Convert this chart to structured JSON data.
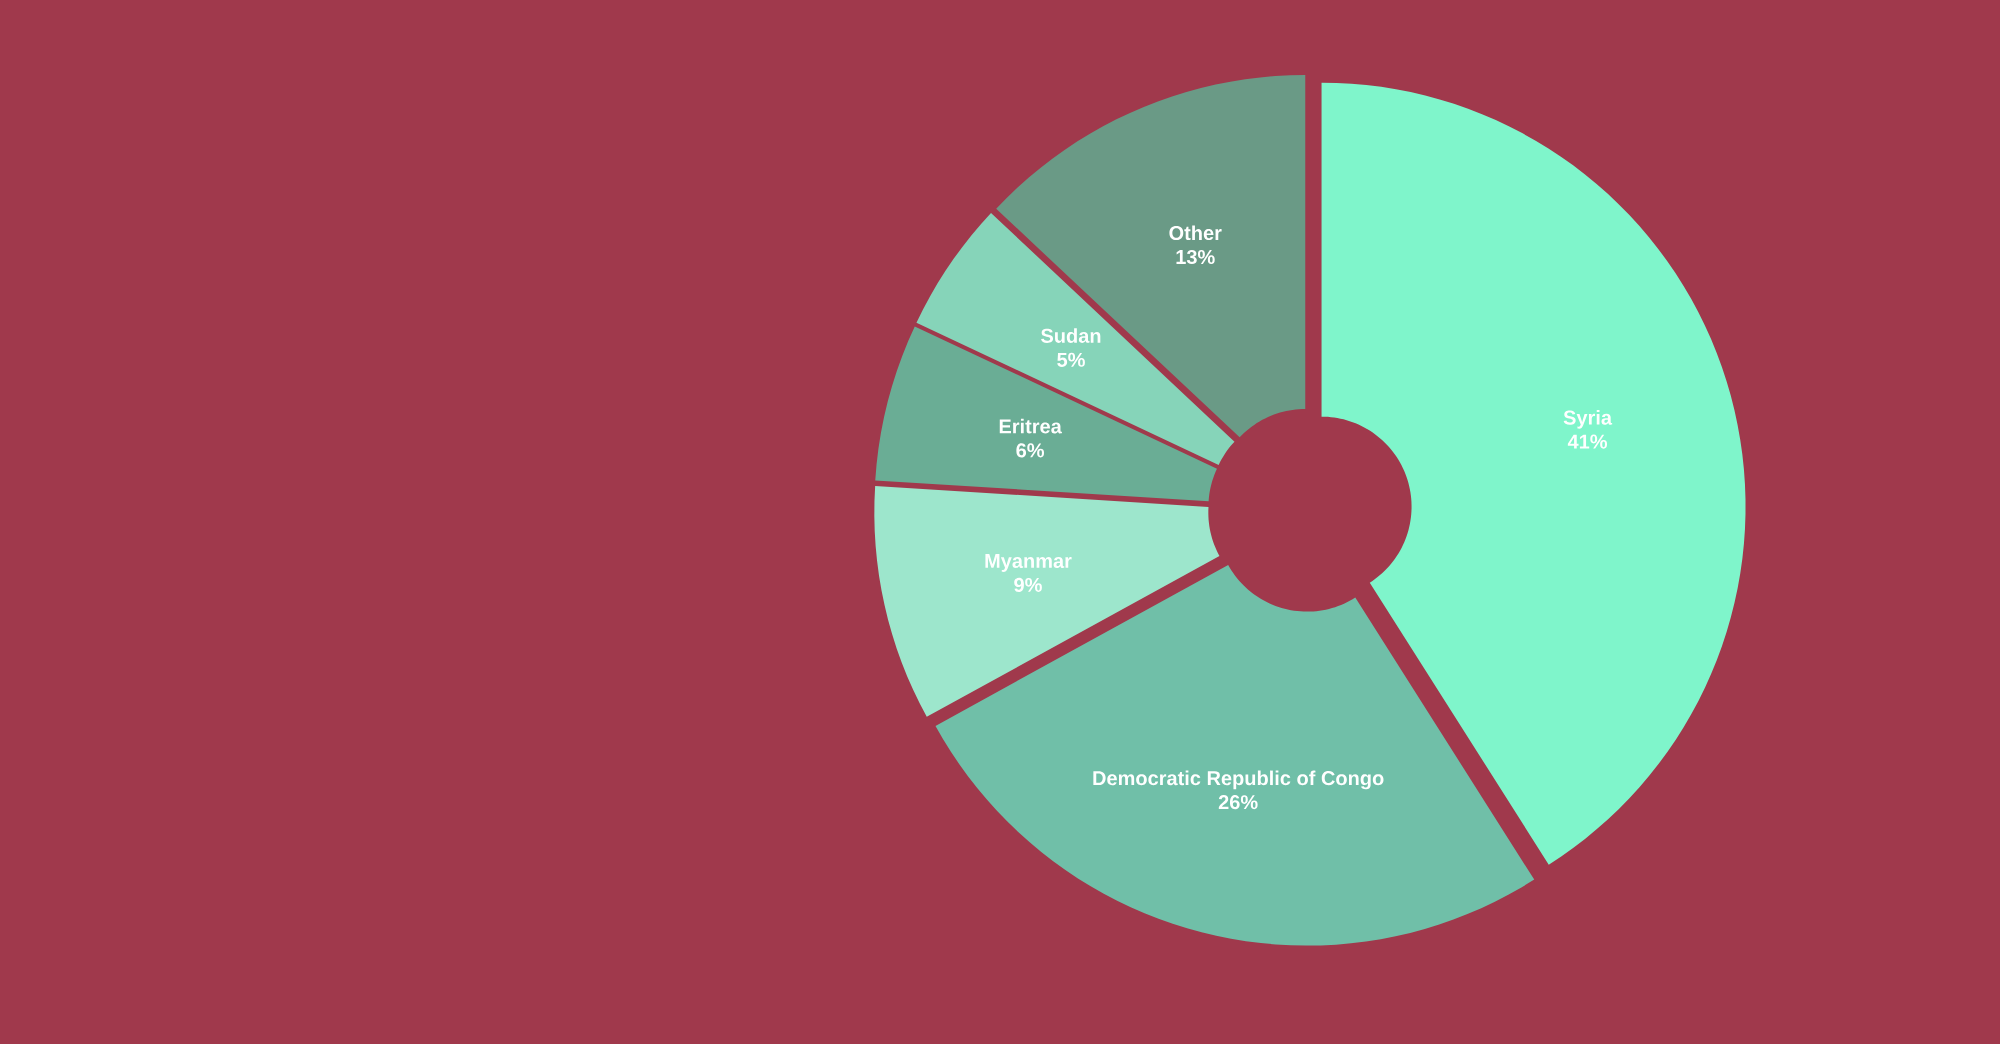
{
  "chart_data": {
    "type": "donut",
    "categories": [
      "Syria",
      "Democratic Republic of Congo",
      "Myanmar",
      "Eritrea",
      "Sudan",
      "Other"
    ],
    "values": [
      41,
      26,
      9,
      6,
      5,
      13
    ],
    "value_labels": [
      "41%",
      "26%",
      "9%",
      "6%",
      "5%",
      "13%"
    ],
    "colors": [
      "#7ff5cb",
      "#70bfa8",
      "#9de6cc",
      "#6aad95",
      "#86d4b9",
      "#6a9a86"
    ]
  }
}
